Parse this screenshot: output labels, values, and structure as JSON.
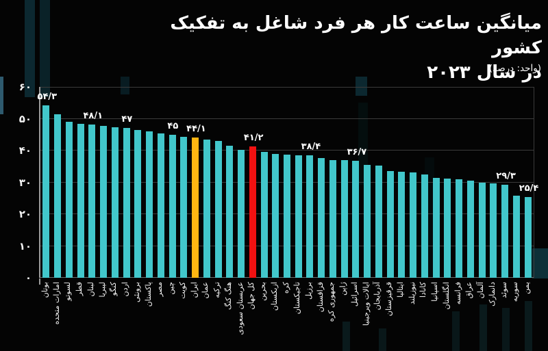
{
  "header": {
    "title_line1": "میانگین ساعت کار هر فرد شاغل به تفکیک کشور",
    "title_line2": "در سال ۲۰۲۳",
    "unit_note": "(واحد: درصد)"
  },
  "chart_data": {
    "type": "bar",
    "title": "میانگین ساعت کار هر فرد شاغل به تفکیک کشور در سال ۲۰۲۳",
    "subtitle": "(واحد: درصد)",
    "xlabel": "",
    "ylabel": "",
    "ylim": [
      0,
      60
    ],
    "grid": true,
    "legend": "none",
    "colors": {
      "default": "#42c7cb",
      "iran": "#ffb612",
      "world": "#f31111"
    },
    "yticks": [
      {
        "value": 0,
        "label": "۰"
      },
      {
        "value": 10,
        "label": "۱۰"
      },
      {
        "value": 20,
        "label": "۲۰"
      },
      {
        "value": 30,
        "label": "۳۰"
      },
      {
        "value": 40,
        "label": "۴۰"
      },
      {
        "value": 50,
        "label": "۵۰"
      },
      {
        "value": 60,
        "label": "۶۰"
      }
    ],
    "bars": [
      {
        "name": "بوتان",
        "value": 54.3,
        "label": "۵۴/۳"
      },
      {
        "name": "امارات متحده",
        "value": 51.3
      },
      {
        "name": "لسوتو",
        "value": 49.0
      },
      {
        "name": "قطر",
        "value": 48.4
      },
      {
        "name": "لبنان",
        "value": 48.1,
        "label": "۴۸/۱"
      },
      {
        "name": "لیبریا",
        "value": 47.8
      },
      {
        "name": "کنگو",
        "value": 47.4
      },
      {
        "name": "اردن",
        "value": 47.0,
        "label": "۴۷"
      },
      {
        "name": "برونئی",
        "value": 46.4
      },
      {
        "name": "پاکستان",
        "value": 46.1
      },
      {
        "name": "مصر",
        "value": 45.3
      },
      {
        "name": "چین",
        "value": 45.0,
        "label": "۴۵"
      },
      {
        "name": "کویت",
        "value": 44.3
      },
      {
        "name": "ایران",
        "value": 44.1,
        "label": "۴۴/۱",
        "highlight": "iran"
      },
      {
        "name": "عمان",
        "value": 43.5
      },
      {
        "name": "ترکیه",
        "value": 43.0
      },
      {
        "name": "هنگ کنگ",
        "value": 41.5
      },
      {
        "name": "عربستان سعودی",
        "value": 40.2
      },
      {
        "name": "کل جهان",
        "value": 41.2,
        "label": "۴۱/۲",
        "highlight": "world"
      },
      {
        "name": "بحرین",
        "value": 39.6
      },
      {
        "name": "ازبکستان",
        "value": 38.9
      },
      {
        "name": "کره",
        "value": 38.7
      },
      {
        "name": "تاجیکستان",
        "value": 38.6
      },
      {
        "name": "برزیل",
        "value": 38.4,
        "label": "۳۸/۴"
      },
      {
        "name": "قزاقستان",
        "value": 37.6
      },
      {
        "name": "جمهوری کره",
        "value": 37.0
      },
      {
        "name": "ژاپن",
        "value": 36.9
      },
      {
        "name": "اسرائیل",
        "value": 36.7,
        "label": "۳۶/۷"
      },
      {
        "name": "ایالات ویرجینیا",
        "value": 35.4
      },
      {
        "name": "آذربایجان",
        "value": 35.2
      },
      {
        "name": "قرقیزستان",
        "value": 33.5
      },
      {
        "name": "ایتالیا",
        "value": 33.3
      },
      {
        "name": "نیوزیلند",
        "value": 33.1
      },
      {
        "name": "کانادا",
        "value": 32.4
      },
      {
        "name": "اسپانیا",
        "value": 31.3
      },
      {
        "name": "انگلستان",
        "value": 31.2
      },
      {
        "name": "فرانسه",
        "value": 31.0
      },
      {
        "name": "عراق",
        "value": 30.5
      },
      {
        "name": "آلمان",
        "value": 30.0
      },
      {
        "name": "دانمارک",
        "value": 29.6
      },
      {
        "name": "سوئد",
        "value": 29.3,
        "label": "۲۹/۳"
      },
      {
        "name": "سوریه",
        "value": 25.9
      },
      {
        "name": "یمن",
        "value": 25.4,
        "label": "۲۵/۴"
      }
    ]
  }
}
